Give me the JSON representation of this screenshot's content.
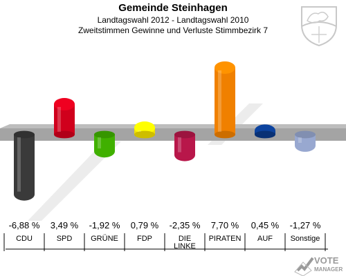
{
  "header": {
    "title": "Gemeinde Steinhagen",
    "subtitle1": "Landtagswahl 2012 - Landtagswahl 2010",
    "subtitle2": "Zweitstimmen Gewinne und Verluste Stimmbezirk 7"
  },
  "logo": {
    "line1": "VOTE",
    "line2": "MANAGER"
  },
  "crest": {
    "icon": "coat-of-arms-icon"
  },
  "chart_data": {
    "type": "bar",
    "title": "Gemeinde Steinhagen",
    "categories": [
      "CDU",
      "SPD",
      "GRÜNE",
      "FDP",
      "DIE LINKE",
      "PIRATEN",
      "AUF",
      "Sonstige"
    ],
    "category_lines": [
      [
        "CDU"
      ],
      [
        "SPD"
      ],
      [
        "GRÜNE"
      ],
      [
        "FDP"
      ],
      [
        "DIE",
        "LINKE"
      ],
      [
        "PIRATEN"
      ],
      [
        "AUF"
      ],
      [
        "Sonstige"
      ]
    ],
    "values": [
      -6.88,
      3.49,
      -1.92,
      0.79,
      -2.35,
      7.7,
      0.45,
      -1.27
    ],
    "value_labels": [
      "-6,88 %",
      "3,49 %",
      "-1,92 %",
      "0,79 %",
      "-2,35 %",
      "7,70 %",
      "0,45 %",
      "-1,27 %"
    ],
    "colors": [
      "#3a3a3a",
      "#d0001c",
      "#40b000",
      "#f2e000",
      "#b8174a",
      "#f08000",
      "#0a3a8a",
      "#98a8d0"
    ],
    "xlabel": "",
    "ylabel": "",
    "ylim": [
      -8,
      8
    ],
    "grid": false,
    "legend": "none"
  }
}
